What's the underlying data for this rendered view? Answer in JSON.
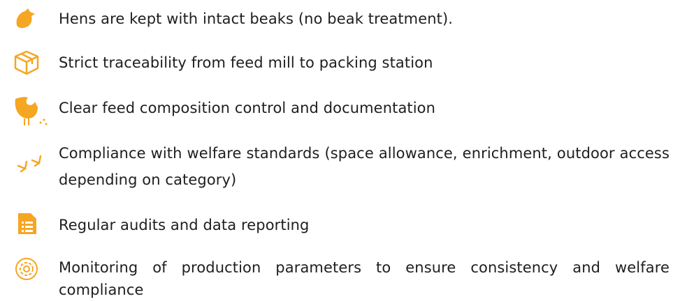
{
  "items": [
    {
      "text": "Hens are kept with intact beaks (no beak treatment)."
    },
    {
      "text": "Strict traceability from feed mill to packing station"
    },
    {
      "text": "Clear feed composition control and documentation"
    },
    {
      "text": "Compliance with welfare standards (space allowance, enrichment, outdoor access depending on category)"
    },
    {
      "text": "Regular audits and data reporting"
    },
    {
      "text": "Monitoring of production parameters to ensure consistency and welfare compliance"
    }
  ]
}
